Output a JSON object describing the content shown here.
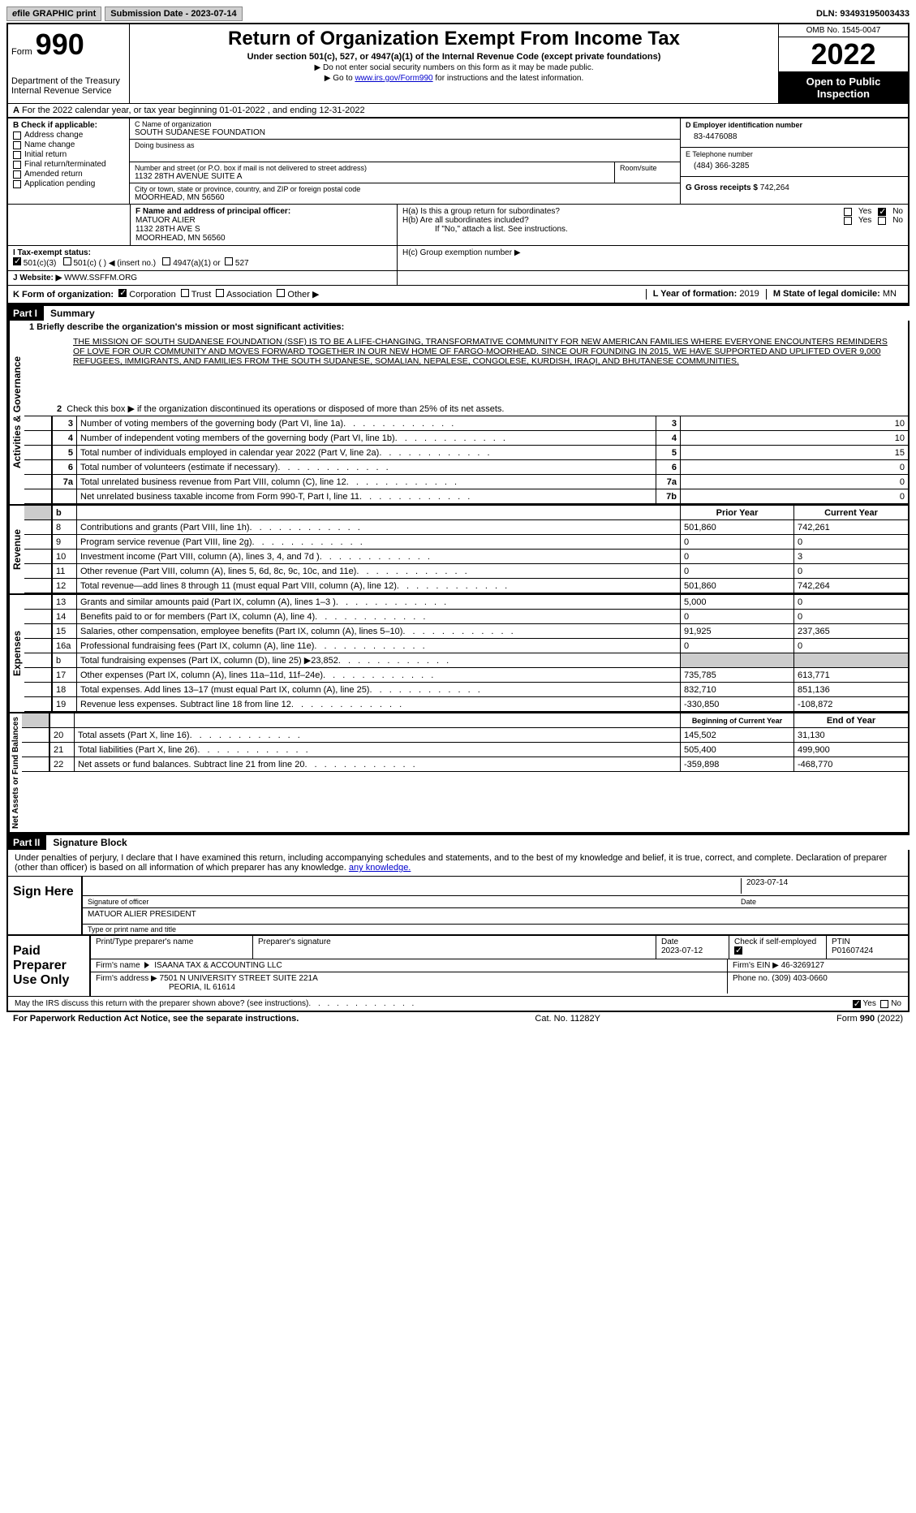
{
  "topbar": {
    "efile_prefix": "e",
    "efile_text": "file GRAPHIC print",
    "submission_label": "Submission Date - 2023-07-14",
    "dln": "DLN: 93493195003433"
  },
  "header": {
    "form_word": "Form",
    "form_num": "990",
    "dept": "Department of the Treasury Internal Revenue Service",
    "title": "Return of Organization Exempt From Income Tax",
    "subtitle": "Under section 501(c), 527, or 4947(a)(1) of the Internal Revenue Code (except private foundations)",
    "note1": "▶ Do not enter social security numbers on this form as it may be made public.",
    "note2_pre": "▶ Go to ",
    "note2_link": "www.irs.gov/Form990",
    "note2_post": " for instructions and the latest information.",
    "omb": "OMB No. 1545-0047",
    "year": "2022",
    "open": "Open to Public Inspection"
  },
  "row_a": {
    "label": "A",
    "text": "For the 2022 calendar year, or tax year beginning 01-01-2022   , and ending 12-31-2022"
  },
  "section_b": {
    "label": "B Check if applicable:",
    "opts": [
      "Address change",
      "Name change",
      "Initial return",
      "Final return/terminated",
      "Amended return",
      "Application pending"
    ]
  },
  "section_c": {
    "name_label": "C Name of organization",
    "name": "SOUTH SUDANESE FOUNDATION",
    "dba_label": "Doing business as",
    "addr_label": "Number and street (or P.O. box if mail is not delivered to street address)",
    "room_label": "Room/suite",
    "addr": "1132 28TH AVENUE SUITE A",
    "city_label": "City or town, state or province, country, and ZIP or foreign postal code",
    "city": "MOORHEAD, MN   56560"
  },
  "section_d": {
    "label": "D Employer identification number",
    "val": "83-4476088",
    "e_label": "E Telephone number",
    "e_val": "(484) 366-3285",
    "g_label": "G Gross receipts $",
    "g_val": "742,264"
  },
  "section_f": {
    "label": "F  Name and address of principal officer:",
    "name": "MATUOR ALIER",
    "line2": "1132 28TH AVE S",
    "line3": "MOORHEAD, MN   56560"
  },
  "section_h": {
    "ha": "H(a)  Is this a group return for subordinates?",
    "hb": "H(b)  Are all subordinates included?",
    "hb_note": "If \"No,\" attach a list. See instructions.",
    "hc": "H(c)  Group exemption number ▶",
    "yes": "Yes",
    "no": "No"
  },
  "section_i": {
    "label": "I    Tax-exempt status:",
    "o1": "501(c)(3)",
    "o2": "501(c) (  ) ◀ (insert no.)",
    "o3": "4947(a)(1) or",
    "o4": "527"
  },
  "section_j": {
    "label": "J",
    "text": "Website: ▶",
    "val": "WWW.SSFFM.ORG"
  },
  "section_k": {
    "label": "K Form of organization:",
    "opts": [
      "Corporation",
      "Trust",
      "Association",
      "Other ▶"
    ],
    "l_label": "L Year of formation: ",
    "l_val": "2019",
    "m_label": "M State of legal domicile: ",
    "m_val": "MN"
  },
  "part1": {
    "hdr": "Part I",
    "title": "Summary",
    "side1": "Activities & Governance",
    "side2": "Revenue",
    "side3": "Expenses",
    "side4": "Net Assets or Fund Balances",
    "l1": "1 Briefly describe the organization's mission or most significant activities:",
    "mission": "THE MISSION OF SOUTH SUDANESE FOUNDATION (SSF) IS TO BE A LIFE-CHANGING, TRANSFORMATIVE COMMUNITY FOR NEW AMERICAN FAMILIES WHERE EVERYONE ENCOUNTERS REMINDERS OF LOVE FOR OUR COMMUNITY AND MOVES FORWARD TOGETHER IN OUR NEW HOME OF FARGO-MOORHEAD. SINCE OUR FOUNDING IN 2015, WE HAVE SUPPORTED AND UPLIFTED OVER 9,000 REFUGEES, IMMIGRANTS, AND FAMILIES FROM THE SOUTH SUDANESE, SOMALIAN, NEPALESE, CONGOLESE, KURDISH, IRAQI, AND BHUTANESE COMMUNITIES.",
    "l2": "Check this box ▶    if the organization discontinued its operations or disposed of more than 25% of its net assets.",
    "rows_gov": [
      {
        "n": "3",
        "t": "Number of voting members of the governing body (Part VI, line 1a)",
        "b": "3",
        "v": "10"
      },
      {
        "n": "4",
        "t": "Number of independent voting members of the governing body (Part VI, line 1b)",
        "b": "4",
        "v": "10"
      },
      {
        "n": "5",
        "t": "Total number of individuals employed in calendar year 2022 (Part V, line 2a)",
        "b": "5",
        "v": "15"
      },
      {
        "n": "6",
        "t": "Total number of volunteers (estimate if necessary)",
        "b": "6",
        "v": "0"
      },
      {
        "n": "7a",
        "t": "Total unrelated business revenue from Part VIII, column (C), line 12",
        "b": "7a",
        "v": "0"
      },
      {
        "n": "",
        "t": "Net unrelated business taxable income from Form 990-T, Part I, line 11",
        "b": "7b",
        "v": "0"
      }
    ],
    "col_prior": "Prior Year",
    "col_curr": "Current Year",
    "rows_rev": [
      {
        "n": "8",
        "t": "Contributions and grants (Part VIII, line 1h)",
        "p": "501,860",
        "c": "742,261"
      },
      {
        "n": "9",
        "t": "Program service revenue (Part VIII, line 2g)",
        "p": "0",
        "c": "0"
      },
      {
        "n": "10",
        "t": "Investment income (Part VIII, column (A), lines 3, 4, and 7d )",
        "p": "0",
        "c": "3"
      },
      {
        "n": "11",
        "t": "Other revenue (Part VIII, column (A), lines 5, 6d, 8c, 9c, 10c, and 11e)",
        "p": "0",
        "c": "0"
      },
      {
        "n": "12",
        "t": "Total revenue—add lines 8 through 11 (must equal Part VIII, column (A), line 12)",
        "p": "501,860",
        "c": "742,264"
      }
    ],
    "rows_exp": [
      {
        "n": "13",
        "t": "Grants and similar amounts paid (Part IX, column (A), lines 1–3 )",
        "p": "5,000",
        "c": "0"
      },
      {
        "n": "14",
        "t": "Benefits paid to or for members (Part IX, column (A), line 4)",
        "p": "0",
        "c": "0"
      },
      {
        "n": "15",
        "t": "Salaries, other compensation, employee benefits (Part IX, column (A), lines 5–10)",
        "p": "91,925",
        "c": "237,365"
      },
      {
        "n": "16a",
        "t": "Professional fundraising fees (Part IX, column (A), line 11e)",
        "p": "0",
        "c": "0"
      },
      {
        "n": "b",
        "t": "Total fundraising expenses (Part IX, column (D), line 25) ▶23,852",
        "p": "",
        "c": "",
        "gray": true
      },
      {
        "n": "17",
        "t": "Other expenses (Part IX, column (A), lines 11a–11d, 11f–24e)",
        "p": "735,785",
        "c": "613,771"
      },
      {
        "n": "18",
        "t": "Total expenses. Add lines 13–17 (must equal Part IX, column (A), line 25)",
        "p": "832,710",
        "c": "851,136"
      },
      {
        "n": "19",
        "t": "Revenue less expenses. Subtract line 18 from line 12",
        "p": "-330,850",
        "c": "-108,872"
      }
    ],
    "col_begin": "Beginning of Current Year",
    "col_end": "End of Year",
    "rows_net": [
      {
        "n": "20",
        "t": "Total assets (Part X, line 16)",
        "p": "145,502",
        "c": "31,130"
      },
      {
        "n": "21",
        "t": "Total liabilities (Part X, line 26)",
        "p": "505,400",
        "c": "499,900"
      },
      {
        "n": "22",
        "t": "Net assets or fund balances. Subtract line 21 from line 20",
        "p": "-359,898",
        "c": "-468,770"
      }
    ]
  },
  "part2": {
    "hdr": "Part II",
    "title": "Signature Block",
    "intro": "Under penalties of perjury, I declare that I have examined this return, including accompanying schedules and statements, and to the best of my knowledge and belief, it is true, correct, and complete. Declaration of preparer (other than officer) is based on all information of which preparer has any knowledge.",
    "sign_here": "Sign Here",
    "sig_label": "Signature of officer",
    "date_label": "Date",
    "sig_date": "2023-07-14",
    "name_label": "Type or print name and title",
    "name_val": "MATUOR ALIER  PRESIDENT",
    "paid": "Paid Preparer Use Only",
    "prep_name_label": "Print/Type preparer's name",
    "prep_sig_label": "Preparer's signature",
    "prep_date_label": "Date",
    "prep_date": "2023-07-12",
    "check_if": "Check     if self-employed",
    "ptin_label": "PTIN",
    "ptin": "P01607424",
    "firm_name_label": "Firm's name",
    "firm_name": "ISAANA TAX & ACCOUNTING LLC",
    "firm_ein_label": "Firm's EIN ▶",
    "firm_ein": "46-3269127",
    "firm_addr_label": "Firm's address ▶",
    "firm_addr1": "7501 N UNIVERSITY STREET SUITE 221A",
    "firm_addr2": "PEORIA, IL   61614",
    "phone_label": "Phone no.",
    "phone": "(309) 403-0660",
    "discuss": "May the IRS discuss this return with the preparer shown above? (see instructions)",
    "yes": "Yes",
    "no": "No"
  },
  "footer": {
    "left": "For Paperwork Reduction Act Notice, see the separate instructions.",
    "mid": "Cat. No. 11282Y",
    "right_pre": "Form ",
    "right_num": "990",
    "right_post": " (2022)"
  }
}
